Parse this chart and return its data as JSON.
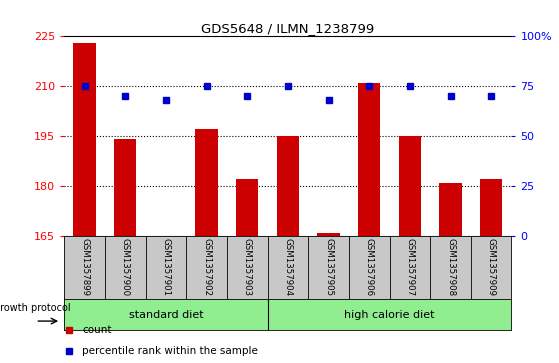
{
  "title": "GDS5648 / ILMN_1238799",
  "samples": [
    "GSM1357899",
    "GSM1357900",
    "GSM1357901",
    "GSM1357902",
    "GSM1357903",
    "GSM1357904",
    "GSM1357905",
    "GSM1357906",
    "GSM1357907",
    "GSM1357908",
    "GSM1357909"
  ],
  "counts": [
    223,
    194,
    165,
    197,
    182,
    195,
    166,
    211,
    195,
    181,
    182
  ],
  "percentiles": [
    75,
    70,
    68,
    75,
    70,
    75,
    68,
    75,
    75,
    70,
    70
  ],
  "ylim_left": [
    165,
    225
  ],
  "ylim_right": [
    0,
    100
  ],
  "yticks_left": [
    165,
    180,
    195,
    210,
    225
  ],
  "yticks_right": [
    0,
    25,
    50,
    75,
    100
  ],
  "bar_color": "#cc0000",
  "dot_color": "#0000cc",
  "grid_color": "#000000",
  "group_labels": [
    "standard diet",
    "high calorie diet"
  ],
  "group_color": "#90ee90",
  "label_area_color": "#c8c8c8",
  "growth_protocol_label": "growth protocol",
  "legend_count": "count",
  "legend_pct": "percentile rank within the sample",
  "right_tick_labels": [
    "100%",
    "75",
    "50",
    "25",
    "0"
  ]
}
